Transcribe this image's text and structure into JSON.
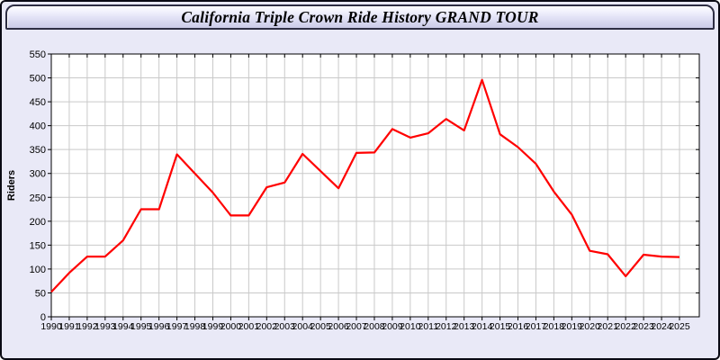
{
  "header": {
    "title": "California Triple Crown Ride History GRAND TOUR"
  },
  "colors": {
    "page_background": "#e9e9f7",
    "window_border": "#0a0a14",
    "titlebar_border": "#2e2e44",
    "plot_background": "#ffffff",
    "grid": "#c9c9c9",
    "axis": "#000000",
    "tick_label": "#000000",
    "line": "#ff0000"
  },
  "chart_data": {
    "type": "line",
    "title": "California Triple Crown Ride History GRAND TOUR",
    "xlabel": "",
    "ylabel": "Riders",
    "ylim": [
      0,
      550
    ],
    "ytick_step": 50,
    "grid": true,
    "legend_position": "none",
    "x": [
      1990,
      1991,
      1992,
      1993,
      1994,
      1995,
      1996,
      1997,
      1998,
      1999,
      2000,
      2001,
      2002,
      2003,
      2004,
      2005,
      2006,
      2007,
      2008,
      2009,
      2010,
      2011,
      2012,
      2013,
      2014,
      2015,
      2016,
      2017,
      2018,
      2019,
      2020,
      2021,
      2022,
      2023,
      2024,
      2025
    ],
    "series": [
      {
        "name": "Riders",
        "color": "#ff0000",
        "values": [
          52,
          92,
          126,
          126,
          160,
          225,
          225,
          340,
          300,
          260,
          212,
          212,
          271,
          281,
          341,
          305,
          269,
          343,
          344,
          393,
          375,
          384,
          414,
          390,
          496,
          382,
          355,
          320,
          262,
          214,
          138,
          131,
          85,
          130,
          126,
          125
        ]
      }
    ]
  }
}
